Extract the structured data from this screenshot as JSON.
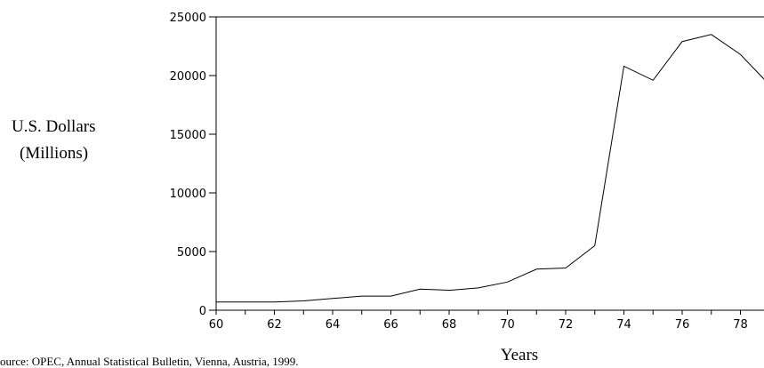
{
  "chart_data": {
    "type": "line",
    "title": "",
    "ylabel_line1": "U.S. Dollars",
    "ylabel_line2": "(Millions)",
    "xlabel": "Years",
    "source": "ource: OPEC, Annual Statistical Bulletin, Vienna, Austria, 1999.",
    "xlim": [
      60,
      79
    ],
    "ylim": [
      0,
      25000
    ],
    "xticks": [
      60,
      62,
      64,
      66,
      68,
      70,
      72,
      74,
      76,
      78
    ],
    "yticks": [
      0,
      5000,
      10000,
      15000,
      20000,
      25000
    ],
    "grid": false,
    "line_color": "#000000",
    "series": [
      {
        "x": [
          60,
          61,
          62,
          63,
          64,
          65,
          66,
          67,
          68,
          69,
          70,
          71,
          72,
          73,
          74,
          75,
          76,
          77,
          78,
          79
        ],
        "values": [
          700,
          700,
          700,
          800,
          1000,
          1200,
          1200,
          1800,
          1700,
          1900,
          2400,
          3500,
          3600,
          5500,
          20800,
          19600,
          22900,
          23500,
          21800,
          19200
        ]
      }
    ]
  }
}
